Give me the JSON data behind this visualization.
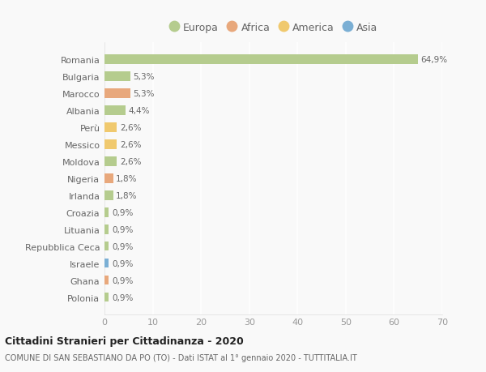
{
  "countries": [
    "Romania",
    "Bulgaria",
    "Marocco",
    "Albania",
    "Perù",
    "Messico",
    "Moldova",
    "Nigeria",
    "Irlanda",
    "Croazia",
    "Lituania",
    "Repubblica Ceca",
    "Israele",
    "Ghana",
    "Polonia"
  ],
  "values": [
    64.9,
    5.3,
    5.3,
    4.4,
    2.6,
    2.6,
    2.6,
    1.8,
    1.8,
    0.9,
    0.9,
    0.9,
    0.9,
    0.9,
    0.9
  ],
  "labels": [
    "64,9%",
    "5,3%",
    "5,3%",
    "4,4%",
    "2,6%",
    "2,6%",
    "2,6%",
    "1,8%",
    "1,8%",
    "0,9%",
    "0,9%",
    "0,9%",
    "0,9%",
    "0,9%",
    "0,9%"
  ],
  "continents": [
    "Europa",
    "Europa",
    "Africa",
    "Europa",
    "America",
    "America",
    "Europa",
    "Africa",
    "Europa",
    "Europa",
    "Europa",
    "Europa",
    "Asia",
    "Africa",
    "Europa"
  ],
  "continent_colors": {
    "Europa": "#b5cc8e",
    "Africa": "#e8a87c",
    "America": "#f0c96e",
    "Asia": "#7bafd4"
  },
  "legend_order": [
    "Europa",
    "Africa",
    "America",
    "Asia"
  ],
  "title": "Cittadini Stranieri per Cittadinanza - 2020",
  "subtitle": "COMUNE DI SAN SEBASTIANO DA PO (TO) - Dati ISTAT al 1° gennaio 2020 - TUTTITALIA.IT",
  "xlim": [
    0,
    70
  ],
  "xticks": [
    0,
    10,
    20,
    30,
    40,
    50,
    60,
    70
  ],
  "background_color": "#f9f9f9",
  "grid_color": "#ffffff",
  "bar_height": 0.55
}
